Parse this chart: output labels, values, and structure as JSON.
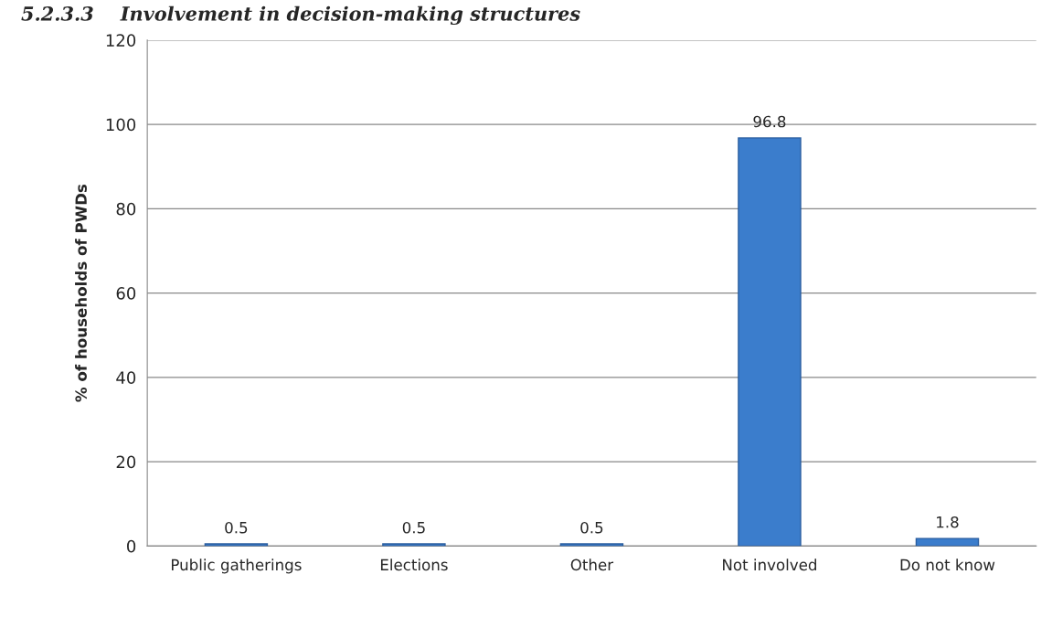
{
  "chart_data": {
    "type": "bar",
    "title": "5.2.3.3    Involvement in decision-making structures",
    "ylabel": "% of households of PWDs",
    "categories": [
      "Public gatherings",
      "Elections",
      "Other",
      "Not involved",
      "Do not know"
    ],
    "values": [
      0.5,
      0.5,
      0.5,
      96.8,
      1.8
    ],
    "color": "#3b7dcc",
    "ylim": [
      0,
      120
    ],
    "yticks": [
      0,
      20,
      40,
      60,
      80,
      100,
      120
    ],
    "grid": "y",
    "data_labels": true
  }
}
